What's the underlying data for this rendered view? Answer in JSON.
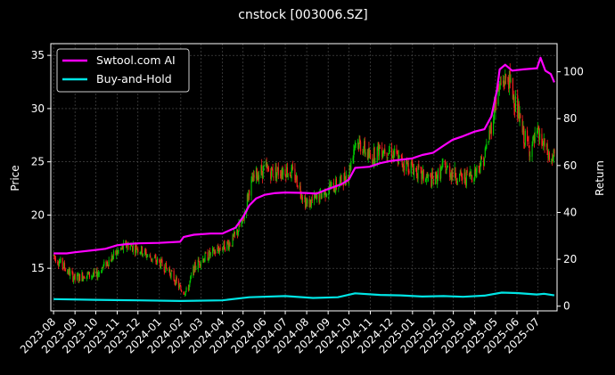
{
  "chart_data": {
    "type": "line",
    "title": "cnstock [003006.SZ]",
    "ylabel": "Price",
    "y2label": "Return",
    "ylim": [
      11.0,
      36.1
    ],
    "y2lim": [
      -2,
      112
    ],
    "yticks": [
      15,
      20,
      25,
      30,
      35
    ],
    "y2ticks": [
      0,
      20,
      40,
      60,
      80,
      100
    ],
    "xticks": [
      "2023-08",
      "2023-09",
      "2023-10",
      "2023-11",
      "2023-12",
      "2024-01",
      "2024-02",
      "2024-03",
      "2024-04",
      "2024-05",
      "2024-06",
      "2024-07",
      "2024-08",
      "2024-09",
      "2024-10",
      "2024-11",
      "2024-12",
      "2025-01",
      "2025-02",
      "2025-03",
      "2025-04",
      "2025-05",
      "2025-06",
      "2025-07"
    ],
    "legend_position": "top-left",
    "grid": true,
    "colors": {
      "up": "#00cc00",
      "down": "#ff2020",
      "strategy": "#ff00ff",
      "buyhold": "#00e5e5"
    },
    "price_trend": [
      [
        "2023-08-01",
        16.2
      ],
      [
        "2023-08-15",
        15.2
      ],
      [
        "2023-09-01",
        14.0
      ],
      [
        "2023-09-15",
        14.4
      ],
      [
        "2023-10-01",
        14.3
      ],
      [
        "2023-10-15",
        15.4
      ],
      [
        "2023-11-01",
        16.5
      ],
      [
        "2023-11-15",
        17.2
      ],
      [
        "2023-12-01",
        16.9
      ],
      [
        "2023-12-15",
        16.2
      ],
      [
        "2024-01-01",
        15.5
      ],
      [
        "2024-01-15",
        14.8
      ],
      [
        "2024-02-01",
        13.0
      ],
      [
        "2024-02-10",
        12.8
      ],
      [
        "2024-02-20",
        15.0
      ],
      [
        "2024-03-01",
        15.8
      ],
      [
        "2024-03-15",
        16.3
      ],
      [
        "2024-04-01",
        17.0
      ],
      [
        "2024-04-15",
        17.5
      ],
      [
        "2024-05-01",
        19.5
      ],
      [
        "2024-05-10",
        22.5
      ],
      [
        "2024-05-20",
        23.8
      ],
      [
        "2024-06-01",
        24.3
      ],
      [
        "2024-06-15",
        24.0
      ],
      [
        "2024-07-01",
        24.3
      ],
      [
        "2024-07-15",
        23.7
      ],
      [
        "2024-08-01",
        21.0
      ],
      [
        "2024-08-15",
        21.5
      ],
      [
        "2024-09-01",
        22.5
      ],
      [
        "2024-09-15",
        22.8
      ],
      [
        "2024-10-01",
        24.0
      ],
      [
        "2024-10-10",
        27.0
      ],
      [
        "2024-10-20",
        26.5
      ],
      [
        "2024-11-01",
        25.3
      ],
      [
        "2024-11-15",
        26.3
      ],
      [
        "2024-12-01",
        26.0
      ],
      [
        "2024-12-15",
        25.0
      ],
      [
        "2025-01-01",
        24.5
      ],
      [
        "2025-01-15",
        23.6
      ],
      [
        "2025-02-01",
        23.2
      ],
      [
        "2025-02-15",
        24.5
      ],
      [
        "2025-03-01",
        23.9
      ],
      [
        "2025-03-15",
        23.4
      ],
      [
        "2025-04-01",
        24.0
      ],
      [
        "2025-04-15",
        25.5
      ],
      [
        "2025-04-25",
        28.5
      ],
      [
        "2025-05-01",
        30.8
      ],
      [
        "2025-05-10",
        32.5
      ],
      [
        "2025-05-20",
        32.8
      ],
      [
        "2025-06-01",
        30.0
      ],
      [
        "2025-06-10",
        27.5
      ],
      [
        "2025-06-20",
        26.2
      ],
      [
        "2025-07-01",
        27.5
      ],
      [
        "2025-07-10",
        26.5
      ],
      [
        "2025-07-20",
        25.0
      ],
      [
        "2025-07-25",
        25.5
      ]
    ],
    "series": [
      {
        "name": "Swtool.com AI",
        "points": [
          [
            "2023-08-01",
            22.5
          ],
          [
            "2023-08-20",
            22.5
          ],
          [
            "2023-09-01",
            23.0
          ],
          [
            "2023-10-01",
            24.0
          ],
          [
            "2023-10-15",
            24.5
          ],
          [
            "2023-11-01",
            26.0
          ],
          [
            "2023-11-15",
            26.5
          ],
          [
            "2023-12-01",
            26.8
          ],
          [
            "2023-12-31",
            27.0
          ],
          [
            "2024-01-31",
            27.5
          ],
          [
            "2024-02-05",
            29.5
          ],
          [
            "2024-02-20",
            30.5
          ],
          [
            "2024-03-15",
            31.0
          ],
          [
            "2024-04-01",
            31.0
          ],
          [
            "2024-04-20",
            33.5
          ],
          [
            "2024-05-01",
            38.0
          ],
          [
            "2024-05-10",
            43.0
          ],
          [
            "2024-05-20",
            46.0
          ],
          [
            "2024-06-01",
            47.5
          ],
          [
            "2024-06-15",
            48.2
          ],
          [
            "2024-07-01",
            48.5
          ],
          [
            "2024-07-31",
            48.3
          ],
          [
            "2024-08-15",
            48.0
          ],
          [
            "2024-09-01",
            50.0
          ],
          [
            "2024-09-20",
            52.0
          ],
          [
            "2024-10-01",
            54.0
          ],
          [
            "2024-10-10",
            59.0
          ],
          [
            "2024-10-31",
            59.5
          ],
          [
            "2024-11-15",
            61.0
          ],
          [
            "2024-12-01",
            62.0
          ],
          [
            "2024-12-31",
            63.0
          ],
          [
            "2025-01-15",
            64.5
          ],
          [
            "2025-01-31",
            65.5
          ],
          [
            "2025-02-15",
            68.5
          ],
          [
            "2025-02-28",
            71.0
          ],
          [
            "2025-03-15",
            72.5
          ],
          [
            "2025-04-01",
            74.5
          ],
          [
            "2025-04-15",
            75.5
          ],
          [
            "2025-04-25",
            81.0
          ],
          [
            "2025-05-03",
            92.0
          ],
          [
            "2025-05-07",
            101.0
          ],
          [
            "2025-05-15",
            103.0
          ],
          [
            "2025-05-25",
            100.5
          ],
          [
            "2025-06-10",
            101.0
          ],
          [
            "2025-06-30",
            101.5
          ],
          [
            "2025-07-05",
            106.0
          ],
          [
            "2025-07-12",
            100.5
          ],
          [
            "2025-07-20",
            99.0
          ],
          [
            "2025-07-25",
            95.5
          ]
        ]
      },
      {
        "name": "Buy-and-Hold",
        "points": [
          [
            "2023-08-01",
            3.0
          ],
          [
            "2023-10-01",
            2.7
          ],
          [
            "2023-12-01",
            2.5
          ],
          [
            "2024-02-01",
            2.2
          ],
          [
            "2024-04-01",
            2.5
          ],
          [
            "2024-05-10",
            3.8
          ],
          [
            "2024-07-01",
            4.3
          ],
          [
            "2024-08-10",
            3.5
          ],
          [
            "2024-09-15",
            3.8
          ],
          [
            "2024-10-10",
            5.5
          ],
          [
            "2024-11-15",
            4.8
          ],
          [
            "2024-12-15",
            4.6
          ],
          [
            "2025-01-15",
            4.1
          ],
          [
            "2025-02-15",
            4.3
          ],
          [
            "2025-03-15",
            4.0
          ],
          [
            "2025-04-15",
            4.5
          ],
          [
            "2025-05-10",
            5.8
          ],
          [
            "2025-06-01",
            5.6
          ],
          [
            "2025-06-30",
            5.0
          ],
          [
            "2025-07-10",
            5.3
          ],
          [
            "2025-07-25",
            4.6
          ]
        ]
      }
    ]
  }
}
